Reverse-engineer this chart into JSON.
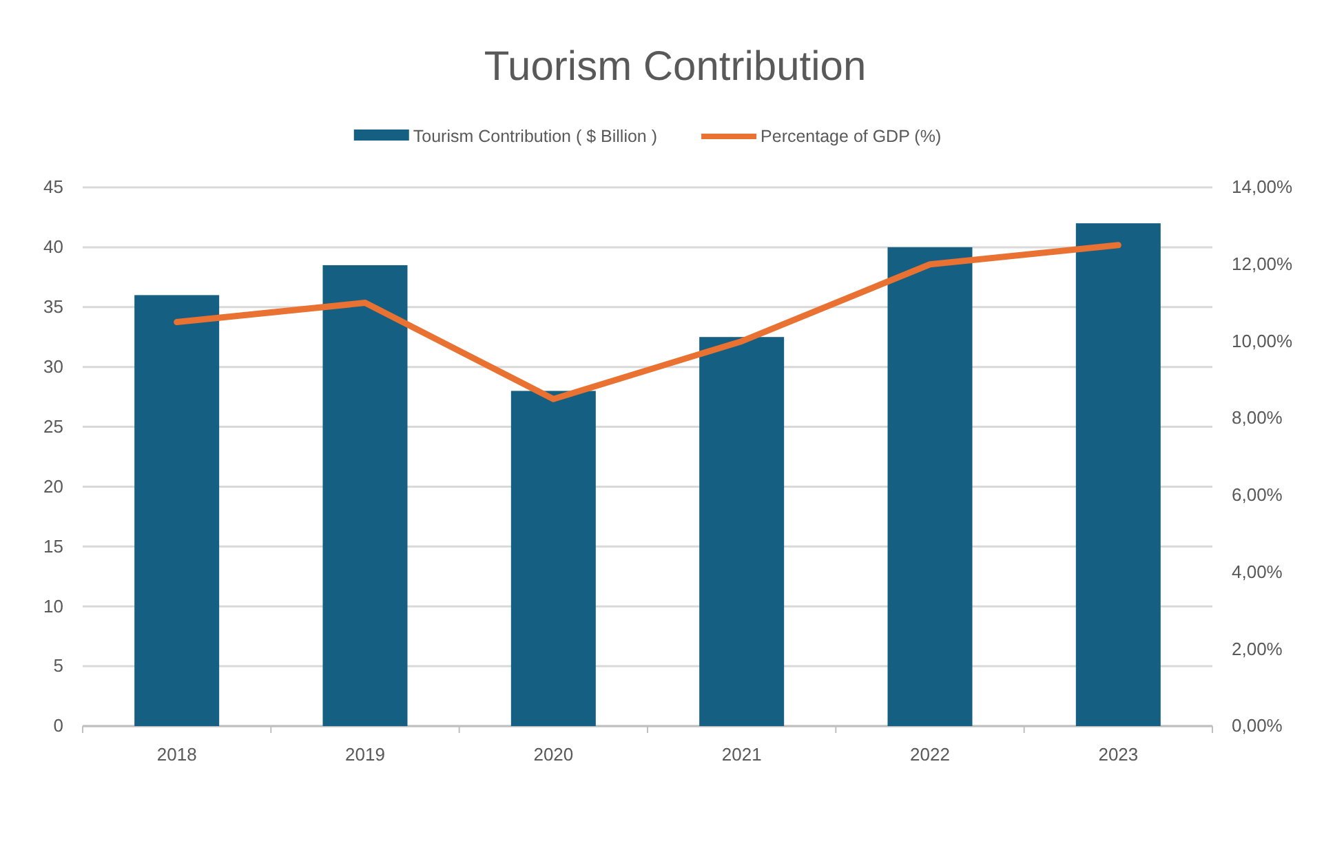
{
  "chart_data": {
    "type": "bar",
    "title": "Tuorism Contribution",
    "categories": [
      "2018",
      "2019",
      "2020",
      "2021",
      "2022",
      "2023"
    ],
    "series": [
      {
        "name": "Tourism Contribution ( $ Billion )",
        "color": "#155f82",
        "values": [
          36,
          38.5,
          28,
          32.5,
          40,
          42
        ]
      },
      {
        "name": "Percentage of GDP (%)",
        "type": "line",
        "axis": "y2",
        "color": "#e97132",
        "values": [
          10.5,
          11,
          8.5,
          10,
          12,
          12.5
        ]
      }
    ],
    "ylim": [
      0,
      45
    ],
    "yticks": [
      0,
      5,
      10,
      15,
      20,
      25,
      30,
      35,
      40,
      45
    ],
    "y2lim": [
      0,
      14
    ],
    "y2ticks": [
      {
        "value": 0,
        "label": "0,00%"
      },
      {
        "value": 2,
        "label": "2,00%"
      },
      {
        "value": 4,
        "label": "4,00%"
      },
      {
        "value": 6,
        "label": "6,00%"
      },
      {
        "value": 8,
        "label": "8,00%"
      },
      {
        "value": 10,
        "label": "10,00%"
      },
      {
        "value": 12,
        "label": "12,00%"
      },
      {
        "value": 14,
        "label": "14,00%"
      }
    ],
    "grid": "y",
    "legend": "top",
    "marker": "none"
  }
}
